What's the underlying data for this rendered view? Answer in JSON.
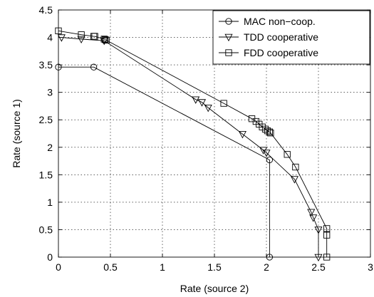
{
  "chart_data": {
    "type": "line",
    "title": "",
    "xlabel": "Rate (source 2)",
    "ylabel": "Rate (source 1)",
    "xlim": [
      0,
      3
    ],
    "ylim": [
      0,
      4.5
    ],
    "xticks": [
      0,
      0.5,
      1,
      1.5,
      2,
      2.5,
      3
    ],
    "yticks": [
      0,
      0.5,
      1,
      1.5,
      2,
      2.5,
      3,
      3.5,
      4,
      4.5
    ],
    "xtick_labels": [
      "0",
      "0.5",
      "1",
      "1.5",
      "2",
      "2.5",
      "3"
    ],
    "ytick_labels": [
      "0",
      "0.5",
      "1",
      "1.5",
      "2",
      "2.5",
      "3",
      "3.5",
      "4",
      "4.5"
    ],
    "grid": true,
    "legend_position": "top-right",
    "series": [
      {
        "name": "MAC non−coop.",
        "marker": "circle",
        "x": [
          0,
          0.34,
          2.03,
          2.03
        ],
        "y": [
          3.46,
          3.46,
          1.77,
          0
        ]
      },
      {
        "name": "TDD cooperative",
        "marker": "triangle-down",
        "x": [
          0.03,
          0.22,
          0.44,
          1.32,
          1.38,
          1.44,
          1.77,
          1.97,
          2.0,
          2.27,
          2.43,
          2.45,
          2.5,
          2.5
        ],
        "y": [
          4.0,
          3.97,
          3.94,
          2.87,
          2.82,
          2.72,
          2.24,
          1.95,
          1.9,
          1.42,
          0.82,
          0.72,
          0.5,
          0
        ]
      },
      {
        "name": "FDD cooperative",
        "marker": "square",
        "x": [
          0,
          0.22,
          0.34,
          0.35,
          0.44,
          0.45,
          0.46,
          1.59,
          1.86,
          1.9,
          1.93,
          1.96,
          1.99,
          2.01,
          2.03,
          2.04,
          2.2,
          2.28,
          2.58,
          2.58,
          2.58
        ],
        "y": [
          4.12,
          4.05,
          4.02,
          4.02,
          3.97,
          3.96,
          3.95,
          2.8,
          2.52,
          2.47,
          2.42,
          2.37,
          2.33,
          2.3,
          2.28,
          2.26,
          1.87,
          1.64,
          0.52,
          0.4,
          0
        ]
      }
    ]
  }
}
